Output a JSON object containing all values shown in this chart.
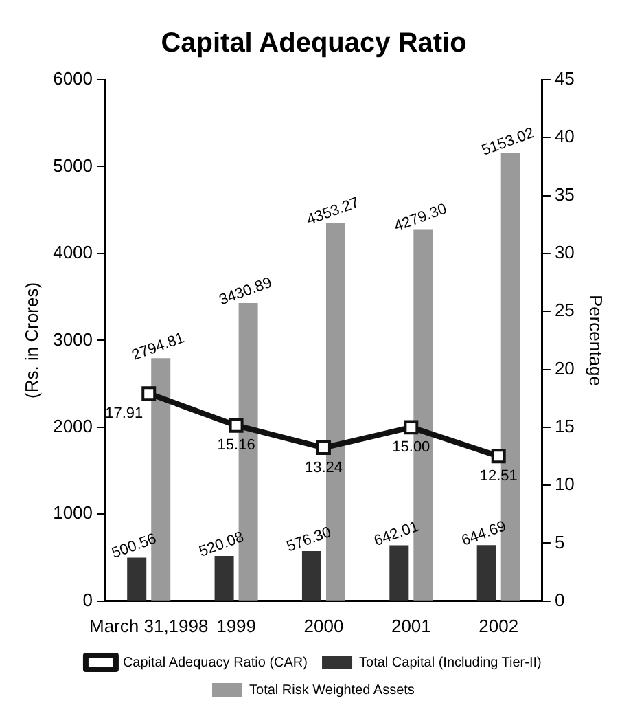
{
  "chart_data": {
    "type": "bar",
    "title": "Capital Adequacy Ratio",
    "categories": [
      "March 31,1998",
      "1999",
      "2000",
      "2001",
      "2002"
    ],
    "ylabel": "(Rs. in Crores)",
    "y2label": "Percentage",
    "ylim": [
      0,
      6000
    ],
    "yticks": [
      0,
      1000,
      2000,
      3000,
      4000,
      5000,
      6000
    ],
    "y2lim": [
      0,
      45
    ],
    "y2ticks": [
      0,
      5,
      10,
      15,
      20,
      25,
      30,
      35,
      40,
      45
    ],
    "grid": false,
    "legend": "bottom",
    "series": [
      {
        "name": "Total Capital (Including Tier-II)",
        "color": "#333333",
        "values": [
          500.56,
          520.08,
          576.3,
          642.01,
          644.69
        ],
        "value_labels": [
          "500.56",
          "520.08",
          "576.30",
          "642.01",
          "644.69"
        ]
      },
      {
        "name": "Total Risk Weighted Assets",
        "color": "#9a9a9a",
        "values": [
          2794.81,
          3430.89,
          4353.27,
          4279.3,
          5153.02
        ],
        "value_labels": [
          "2794.81",
          "3430.89",
          "4353.27",
          "4279.30",
          "5153.02"
        ]
      },
      {
        "name": "Capital Adequacy Ratio (CAR)",
        "type": "line",
        "axis": "y2",
        "color": "#111111",
        "marker": "square",
        "line_style": "solid",
        "values": [
          17.91,
          15.16,
          13.24,
          15.0,
          12.51
        ],
        "value_labels": [
          "17.91",
          "15.16",
          "13.24",
          "15.00",
          "12.51"
        ]
      }
    ]
  }
}
